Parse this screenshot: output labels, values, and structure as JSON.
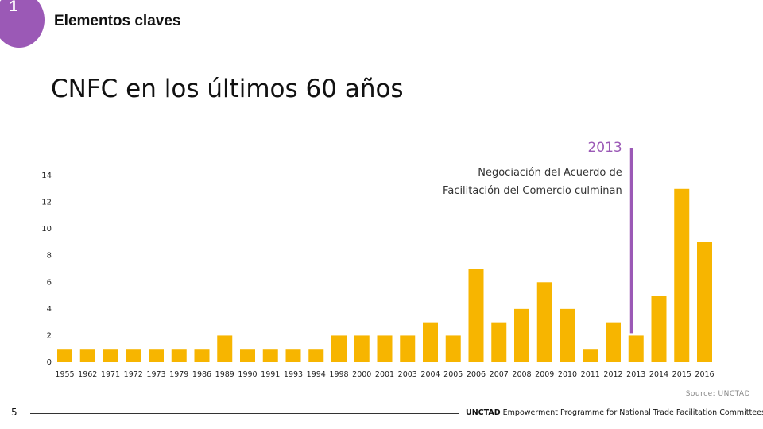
{
  "header": {
    "section_number": "1",
    "section_title": "Elementos claves"
  },
  "page": {
    "title": "CNFC en los últimos 60 años",
    "source": "Source: UNCTAD",
    "number": "5"
  },
  "footer": {
    "brand": "UNCTAD",
    "text": "Empowerment Programme for National Trade Facilitation Committees"
  },
  "colors": {
    "bar": "#f7b500",
    "accent": "#9b59b6"
  },
  "chart_data": {
    "type": "bar",
    "title": "",
    "xlabel": "",
    "ylabel": "",
    "ylim": [
      0,
      14
    ],
    "yticks": [
      0,
      2,
      4,
      6,
      8,
      10,
      12,
      14
    ],
    "grid": false,
    "categories": [
      "1955",
      "1962",
      "1971",
      "1972",
      "1973",
      "1979",
      "1986",
      "1989",
      "1990",
      "1991",
      "1993",
      "1994",
      "1998",
      "2000",
      "2001",
      "2003",
      "2004",
      "2005",
      "2006",
      "2007",
      "2008",
      "2009",
      "2010",
      "2011",
      "2012",
      "2013",
      "2014",
      "2015",
      "2016"
    ],
    "values": [
      1,
      1,
      1,
      1,
      1,
      1,
      1,
      2,
      1,
      1,
      1,
      1,
      2,
      2,
      2,
      2,
      3,
      2,
      7,
      3,
      4,
      6,
      4,
      1,
      3,
      2,
      5,
      13,
      9
    ],
    "annotation": {
      "category": "2013",
      "year_label": "2013",
      "line1": "Negociación del Acuerdo de",
      "line2": "Facilitación del Comercio culminan"
    }
  }
}
